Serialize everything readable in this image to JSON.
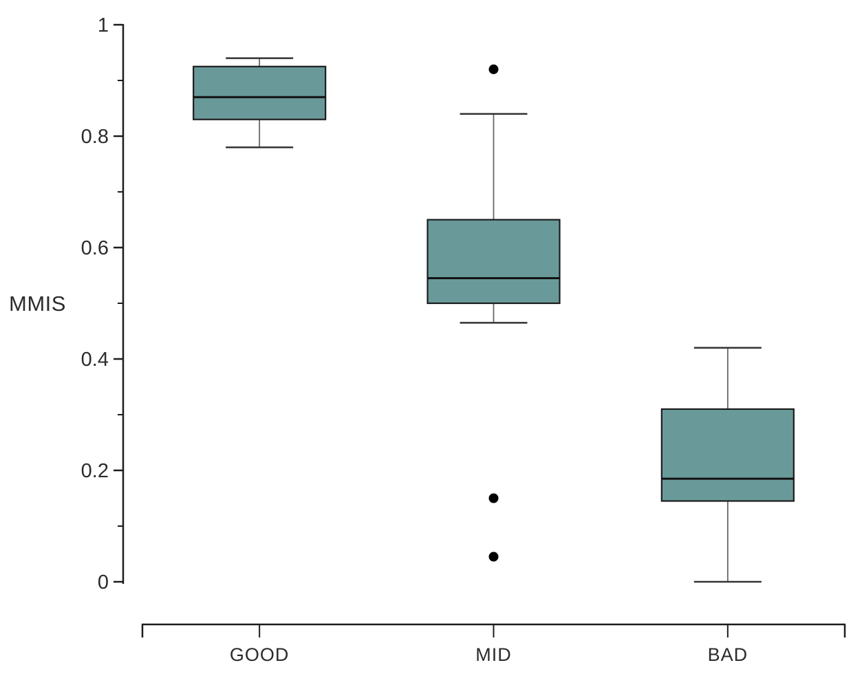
{
  "figure": {
    "background": "#ffffff"
  },
  "chart_data": {
    "type": "boxplot",
    "title": "",
    "ylabel": "MMIS",
    "xlabel": "",
    "categories": [
      "GOOD",
      "MID",
      "BAD"
    ],
    "ylim": [
      0,
      1
    ],
    "yticks": [
      0,
      0.2,
      0.4,
      0.6,
      0.8,
      1
    ],
    "ytick_labels": [
      "0",
      "0.2",
      "0.4",
      "0.6",
      "0.8",
      "1"
    ],
    "yticks_minor": [
      0.1,
      0.3,
      0.5,
      0.7,
      0.9
    ],
    "grid": false,
    "legend": false,
    "series": [
      {
        "name": "GOOD",
        "whisker_low": 0.78,
        "q1": 0.83,
        "median": 0.87,
        "q3": 0.925,
        "whisker_high": 0.94,
        "outliers": []
      },
      {
        "name": "MID",
        "whisker_low": 0.465,
        "q1": 0.5,
        "median": 0.545,
        "q3": 0.65,
        "whisker_high": 0.84,
        "outliers": [
          0.92,
          0.15,
          0.045
        ]
      },
      {
        "name": "BAD",
        "whisker_low": 0.0,
        "q1": 0.145,
        "median": 0.185,
        "q3": 0.31,
        "whisker_high": 0.42,
        "outliers": []
      }
    ],
    "colors": {
      "box_fill": "#699a99",
      "box_stroke": "#1c1c1c",
      "median_stroke": "#111111",
      "whisker_stem": "#666666",
      "whisker_cap": "#333333",
      "outlier_fill": "#000000",
      "axis": "#1c1c1c",
      "text": "#2b2b2b"
    }
  }
}
